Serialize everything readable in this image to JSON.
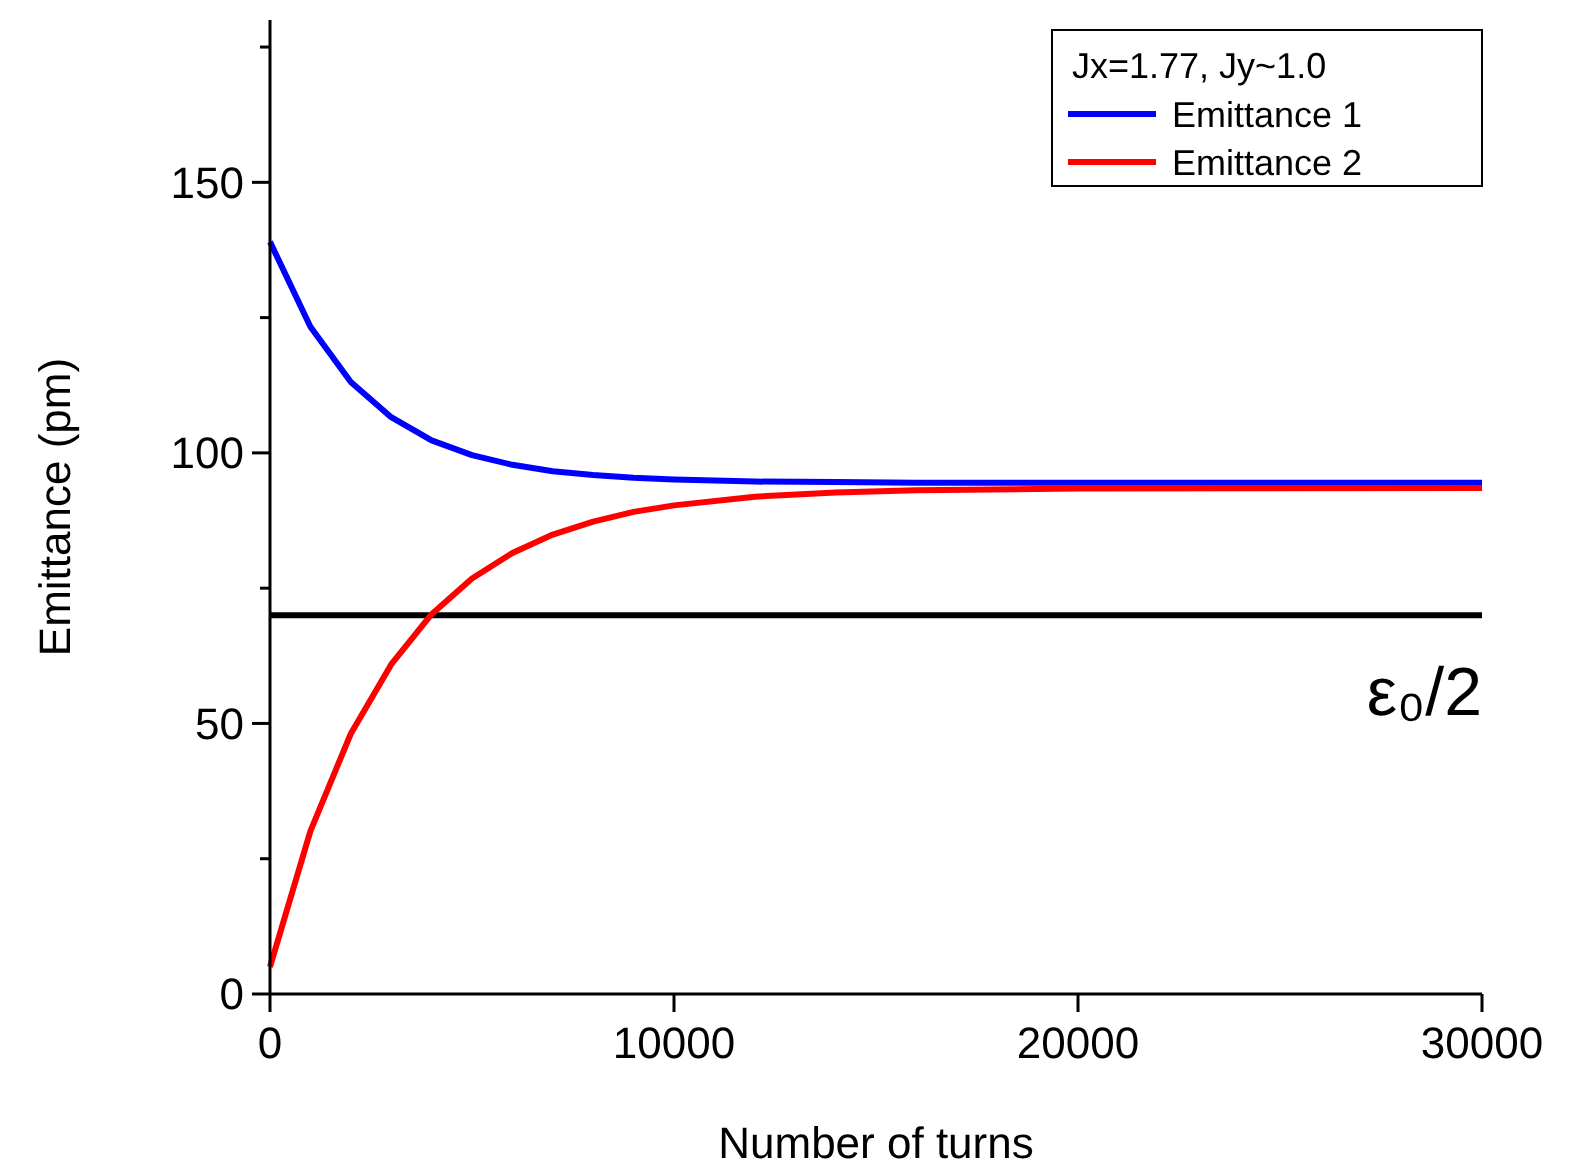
{
  "chart_data": {
    "type": "line",
    "xlabel": "Number of turns",
    "ylabel": "Emittance (pm)",
    "legend_title": "Jx=1.77, Jy~1.0",
    "legend": "top right",
    "grid": false,
    "marker": "none",
    "line_style": "solid",
    "x": [
      0,
      1000,
      2000,
      3000,
      4000,
      5000,
      6000,
      7000,
      8000,
      9000,
      10000,
      12000,
      14000,
      16000,
      20000,
      30000
    ],
    "xlim": [
      0,
      30000
    ],
    "xticks": [
      0,
      10000,
      20000,
      30000
    ],
    "ylim": [
      0,
      180
    ],
    "yticks": [
      0,
      {
        "value": 25,
        "label": null
      },
      50,
      {
        "value": 75,
        "label": null
      },
      100,
      {
        "value": 125,
        "label": null
      },
      150,
      {
        "value": 175,
        "label": null
      }
    ],
    "series": [
      {
        "name": "Emittance 1",
        "color": "#0000ff",
        "values": [
          139,
          123.3,
          113.1,
          106.6,
          102.3,
          99.6,
          97.8,
          96.6,
          95.9,
          95.4,
          95.1,
          94.7,
          94.6,
          94.5,
          94.5,
          94.5
        ]
      },
      {
        "name": "Emittance 2",
        "color": "#ff0000",
        "values": [
          5,
          30.1,
          48.1,
          60.9,
          70.2,
          76.8,
          81.5,
          84.9,
          87.3,
          89.1,
          90.3,
          91.9,
          92.7,
          93.1,
          93.4,
          93.5
        ]
      }
    ],
    "ref_lines": [
      {
        "axis": "y",
        "value": 70,
        "label": "ε₀/2",
        "color": "#000000",
        "line_style": "solid"
      }
    ]
  }
}
